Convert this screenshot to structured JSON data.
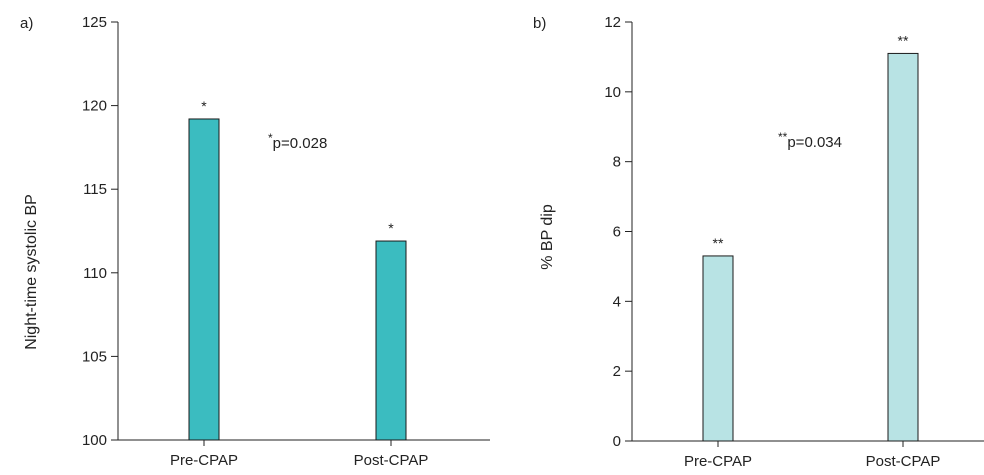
{
  "chart_data": [
    {
      "panel_label": "a)",
      "type": "bar",
      "categories": [
        "Pre-CPAP",
        "Post-CPAP"
      ],
      "values": [
        119.2,
        111.9
      ],
      "value_markers": [
        "*",
        "*"
      ],
      "ylabel": "Night-time systolic BP",
      "xlabel": "",
      "ylim": [
        100,
        125
      ],
      "yticks": [
        100,
        105,
        110,
        115,
        120,
        125
      ],
      "annotation": {
        "prefix": "*",
        "text": "p=0.028"
      },
      "bar_color": "#3bbcc0",
      "grid": false
    },
    {
      "panel_label": "b)",
      "type": "bar",
      "categories": [
        "Pre-CPAP",
        "Post-CPAP"
      ],
      "values": [
        5.3,
        11.1
      ],
      "value_markers": [
        "**",
        "**"
      ],
      "ylabel": "% BP dip",
      "xlabel": "",
      "ylim": [
        0,
        12
      ],
      "yticks": [
        0,
        2,
        4,
        6,
        8,
        10,
        12
      ],
      "annotation": {
        "prefix": "**",
        "text": "p=0.034"
      },
      "bar_color": "#b8e3e4",
      "grid": false
    }
  ]
}
